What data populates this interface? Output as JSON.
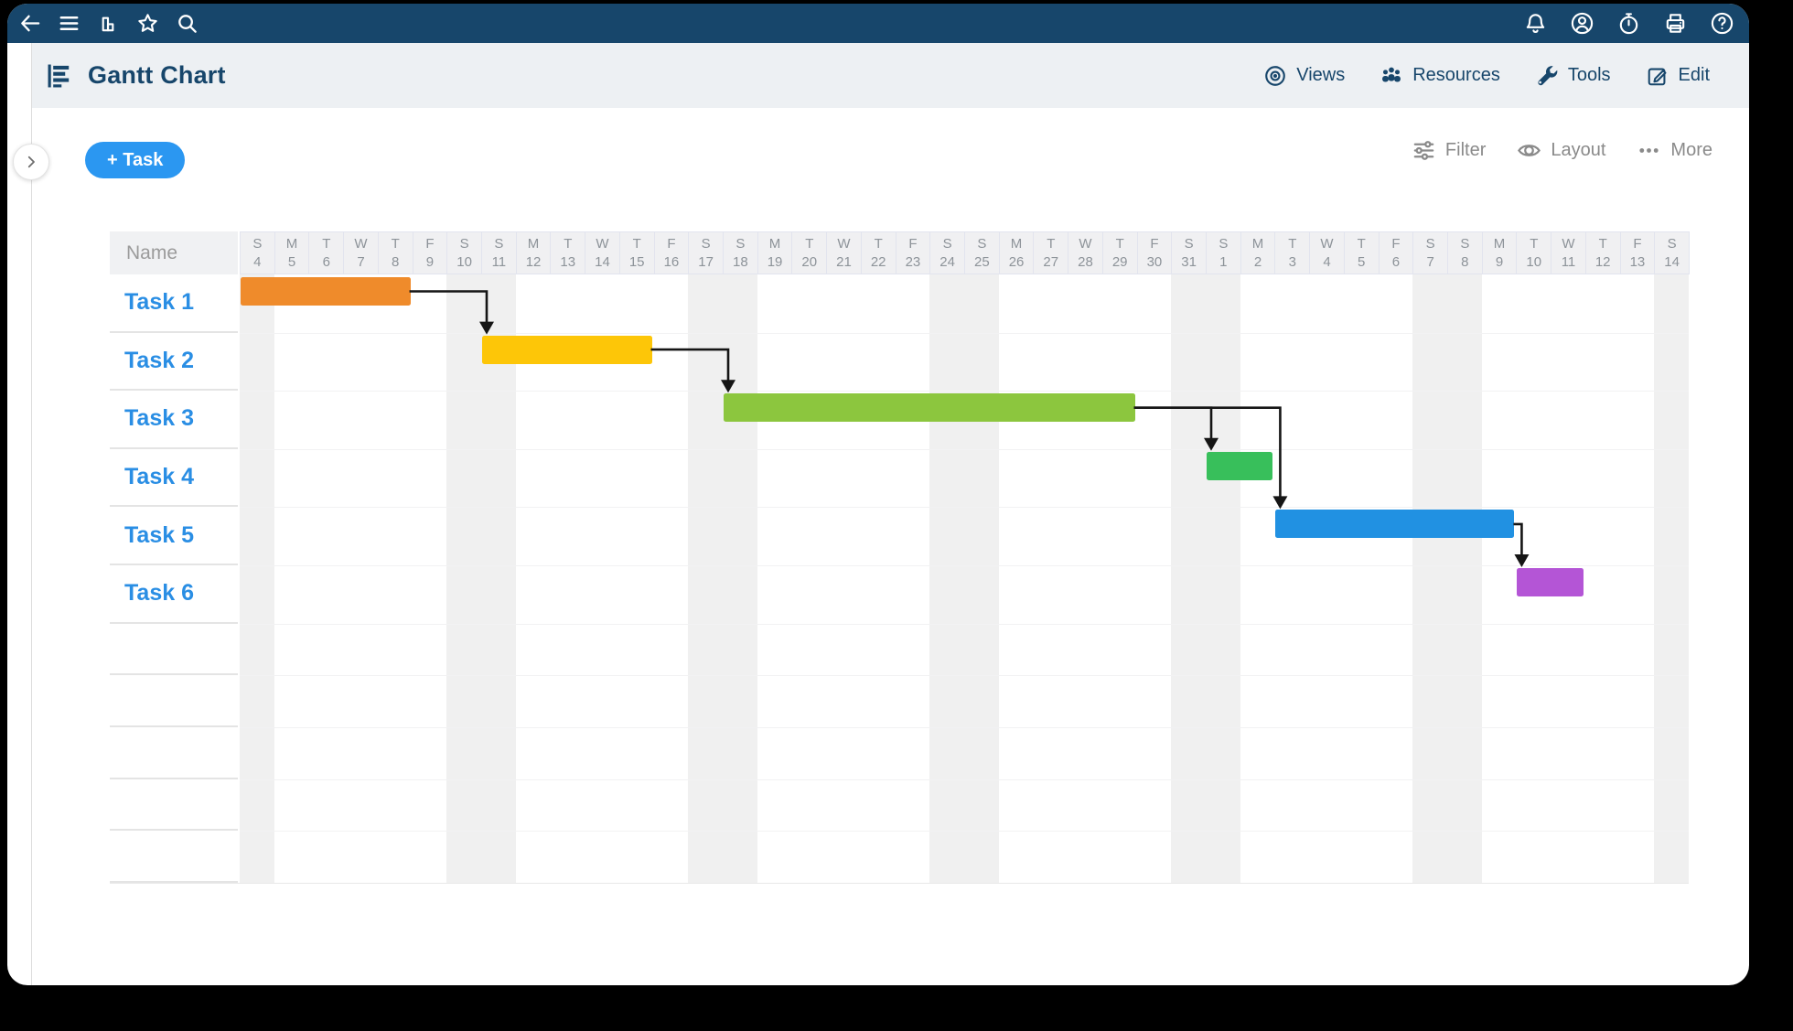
{
  "topbar": {
    "left_icons": [
      "back-icon",
      "menu-icon",
      "chart-icon",
      "star-icon",
      "search-icon"
    ],
    "right_icons": [
      "bell-icon",
      "account-icon",
      "timer-icon",
      "printer-icon",
      "help-icon"
    ]
  },
  "titlebar": {
    "title": "Gantt Chart",
    "nav": [
      {
        "icon": "views-icon",
        "label": "Views"
      },
      {
        "icon": "resources-icon",
        "label": "Resources"
      },
      {
        "icon": "tools-icon",
        "label": "Tools"
      },
      {
        "icon": "edit-icon",
        "label": "Edit"
      }
    ]
  },
  "toolbar": {
    "add_task": "+ Task",
    "actions": [
      {
        "icon": "filter-icon",
        "label": "Filter"
      },
      {
        "icon": "layout-icon",
        "label": "Layout"
      },
      {
        "icon": "more-icon",
        "label": "More"
      }
    ]
  },
  "grid": {
    "name_header": "Name"
  },
  "colors": {
    "topbar_navy": "#17466B",
    "titlebar_bg": "#EDF0F3",
    "accent_blue": "#2B97F1",
    "task_link_blue": "#2A8EE4",
    "weekend_shade": "#F0F0F0",
    "connector": "#151515"
  },
  "chart_data": {
    "type": "gantt",
    "day_letters": [
      "S",
      "M",
      "T",
      "W",
      "T",
      "F",
      "S",
      "S",
      "M",
      "T",
      "W",
      "T",
      "F",
      "S",
      "S",
      "M",
      "T",
      "W",
      "T",
      "F",
      "S",
      "S",
      "M",
      "T",
      "W",
      "T",
      "F",
      "S",
      "S",
      "M",
      "T",
      "W",
      "T",
      "F",
      "S",
      "S",
      "M",
      "T",
      "W",
      "T",
      "F",
      "S"
    ],
    "day_numbers": [
      "4",
      "5",
      "6",
      "7",
      "8",
      "9",
      "10",
      "11",
      "12",
      "13",
      "14",
      "15",
      "16",
      "17",
      "18",
      "19",
      "20",
      "21",
      "22",
      "23",
      "24",
      "25",
      "26",
      "27",
      "28",
      "29",
      "30",
      "31",
      "1",
      "2",
      "3",
      "4",
      "5",
      "6",
      "7",
      "8",
      "9",
      "10",
      "11",
      "12",
      "13",
      "14"
    ],
    "weekend_indices": [
      0,
      6,
      7,
      13,
      14,
      20,
      21,
      27,
      28,
      34,
      35,
      41
    ],
    "tasks": [
      {
        "name": "Task 1",
        "start_index": 0,
        "duration": 5,
        "start_day": "4",
        "end_day": "8",
        "color": "#EF8B2B"
      },
      {
        "name": "Task 2",
        "start_index": 7,
        "duration": 5,
        "start_day": "11",
        "end_day": "15",
        "color": "#FDC608"
      },
      {
        "name": "Task 3",
        "start_index": 14,
        "duration": 12,
        "start_day": "18",
        "end_day": "29",
        "color": "#8CC63E"
      },
      {
        "name": "Task 4",
        "start_index": 28,
        "duration": 2,
        "start_day": "1",
        "end_day": "2",
        "color": "#38BF5B"
      },
      {
        "name": "Task 5",
        "start_index": 30,
        "duration": 7,
        "start_day": "3",
        "end_day": "9",
        "color": "#2191E2"
      },
      {
        "name": "Task 6",
        "start_index": 37,
        "duration": 2,
        "start_day": "10",
        "end_day": "11",
        "color": "#B455D6"
      }
    ],
    "dependencies": [
      {
        "from": 0,
        "to": 1
      },
      {
        "from": 1,
        "to": 2
      },
      {
        "from": 2,
        "to": 3
      },
      {
        "from": 2,
        "to": 4
      },
      {
        "from": 4,
        "to": 5
      }
    ],
    "empty_rows": 5
  }
}
